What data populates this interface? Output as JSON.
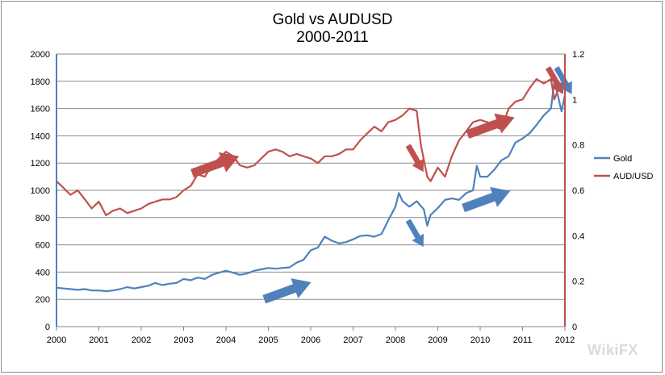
{
  "title": {
    "line1": "Gold vs AUDUSD",
    "line2": "2000-2011"
  },
  "watermark": "WikiFX",
  "chart_data": {
    "type": "line",
    "title": "Gold vs AUDUSD 2000-2011",
    "xlim": [
      2000,
      2012
    ],
    "x_ticks": [
      "2000",
      "2001",
      "2002",
      "2003",
      "2004",
      "2005",
      "2006",
      "2007",
      "2008",
      "2009",
      "2010",
      "2011",
      "2012"
    ],
    "y_left": {
      "ylim": [
        0,
        2000
      ],
      "ticks": [
        "0",
        "200",
        "400",
        "600",
        "800",
        "1000",
        "1200",
        "1400",
        "1600",
        "1800",
        "2000"
      ]
    },
    "y_right": {
      "ylim": [
        0,
        1.2
      ],
      "ticks": [
        "0",
        "0.2",
        "0.4",
        "0.6",
        "0.8",
        "1",
        "1.2"
      ]
    },
    "grid": true,
    "legend_position": "right",
    "series": [
      {
        "name": "Gold",
        "axis": "left",
        "color": "#4f81bd",
        "x": [
          2000.0,
          2000.17,
          2000.33,
          2000.5,
          2000.67,
          2000.83,
          2001.0,
          2001.17,
          2001.33,
          2001.5,
          2001.67,
          2001.83,
          2002.0,
          2002.17,
          2002.33,
          2002.5,
          2002.67,
          2002.83,
          2003.0,
          2003.17,
          2003.33,
          2003.5,
          2003.67,
          2003.83,
          2004.0,
          2004.17,
          2004.33,
          2004.5,
          2004.67,
          2004.83,
          2005.0,
          2005.17,
          2005.33,
          2005.5,
          2005.67,
          2005.83,
          2006.0,
          2006.17,
          2006.33,
          2006.5,
          2006.67,
          2006.83,
          2007.0,
          2007.17,
          2007.33,
          2007.5,
          2007.67,
          2007.83,
          2008.0,
          2008.08,
          2008.17,
          2008.33,
          2008.5,
          2008.67,
          2008.75,
          2008.83,
          2009.0,
          2009.17,
          2009.33,
          2009.5,
          2009.67,
          2009.83,
          2009.92,
          2010.0,
          2010.17,
          2010.33,
          2010.5,
          2010.67,
          2010.83,
          2011.0,
          2011.17,
          2011.33,
          2011.5,
          2011.67,
          2011.75,
          2011.83,
          2011.92,
          2012.0
        ],
        "values": [
          285,
          280,
          275,
          270,
          275,
          265,
          265,
          260,
          265,
          275,
          290,
          280,
          290,
          300,
          320,
          305,
          315,
          320,
          350,
          340,
          360,
          350,
          380,
          395,
          410,
          395,
          380,
          390,
          410,
          420,
          430,
          425,
          430,
          435,
          470,
          490,
          560,
          580,
          660,
          630,
          610,
          620,
          640,
          665,
          670,
          660,
          680,
          780,
          880,
          980,
          920,
          880,
          920,
          860,
          740,
          820,
          870,
          930,
          940,
          930,
          980,
          1000,
          1180,
          1100,
          1100,
          1150,
          1220,
          1250,
          1350,
          1380,
          1420,
          1480,
          1550,
          1600,
          1800,
          1700,
          1580,
          1700
        ]
      },
      {
        "name": "AUD/USD",
        "axis": "right",
        "color": "#c0504d",
        "x": [
          2000.0,
          2000.17,
          2000.33,
          2000.5,
          2000.67,
          2000.83,
          2001.0,
          2001.17,
          2001.33,
          2001.5,
          2001.67,
          2001.83,
          2002.0,
          2002.17,
          2002.33,
          2002.5,
          2002.67,
          2002.83,
          2003.0,
          2003.17,
          2003.33,
          2003.5,
          2003.67,
          2003.83,
          2004.0,
          2004.17,
          2004.33,
          2004.5,
          2004.67,
          2004.83,
          2005.0,
          2005.17,
          2005.33,
          2005.5,
          2005.67,
          2005.83,
          2006.0,
          2006.17,
          2006.33,
          2006.5,
          2006.67,
          2006.83,
          2007.0,
          2007.17,
          2007.33,
          2007.5,
          2007.67,
          2007.83,
          2008.0,
          2008.17,
          2008.33,
          2008.5,
          2008.6,
          2008.75,
          2008.83,
          2009.0,
          2009.17,
          2009.33,
          2009.5,
          2009.67,
          2009.83,
          2010.0,
          2010.17,
          2010.33,
          2010.5,
          2010.67,
          2010.83,
          2011.0,
          2011.17,
          2011.33,
          2011.5,
          2011.67,
          2011.75,
          2011.83,
          2012.0
        ],
        "values": [
          0.64,
          0.61,
          0.58,
          0.6,
          0.56,
          0.52,
          0.55,
          0.49,
          0.51,
          0.52,
          0.5,
          0.51,
          0.52,
          0.54,
          0.55,
          0.56,
          0.56,
          0.57,
          0.6,
          0.62,
          0.67,
          0.66,
          0.71,
          0.74,
          0.77,
          0.75,
          0.71,
          0.7,
          0.71,
          0.74,
          0.77,
          0.78,
          0.77,
          0.75,
          0.76,
          0.75,
          0.74,
          0.72,
          0.75,
          0.75,
          0.76,
          0.78,
          0.78,
          0.82,
          0.85,
          0.88,
          0.86,
          0.9,
          0.91,
          0.93,
          0.96,
          0.95,
          0.8,
          0.66,
          0.64,
          0.7,
          0.66,
          0.75,
          0.82,
          0.86,
          0.9,
          0.91,
          0.9,
          0.88,
          0.87,
          0.96,
          0.99,
          1.0,
          1.05,
          1.09,
          1.07,
          1.09,
          1.0,
          1.04,
          1.07
        ]
      }
    ],
    "annotations": [
      {
        "kind": "arrow",
        "color": "#c0504d",
        "direction": "up-right",
        "at": [
          2003.2,
          1125
        ]
      },
      {
        "kind": "arrow",
        "color": "#4f81bd",
        "direction": "up-right",
        "at": [
          2004.9,
          200
        ]
      },
      {
        "kind": "arrow",
        "color": "#c0504d",
        "direction": "down",
        "at": [
          2008.3,
          1330
        ]
      },
      {
        "kind": "arrow",
        "color": "#4f81bd",
        "direction": "down",
        "at": [
          2008.3,
          780
        ]
      },
      {
        "kind": "arrow",
        "color": "#c0504d",
        "direction": "up-right",
        "at": [
          2009.7,
          1410
        ]
      },
      {
        "kind": "arrow",
        "color": "#4f81bd",
        "direction": "up-right",
        "at": [
          2009.6,
          870
        ]
      },
      {
        "kind": "arrow",
        "color": "#c0504d",
        "direction": "down",
        "at": [
          2011.6,
          1900
        ]
      },
      {
        "kind": "arrow",
        "color": "#4f81bd",
        "direction": "down",
        "at": [
          2011.8,
          1900
        ]
      }
    ]
  }
}
